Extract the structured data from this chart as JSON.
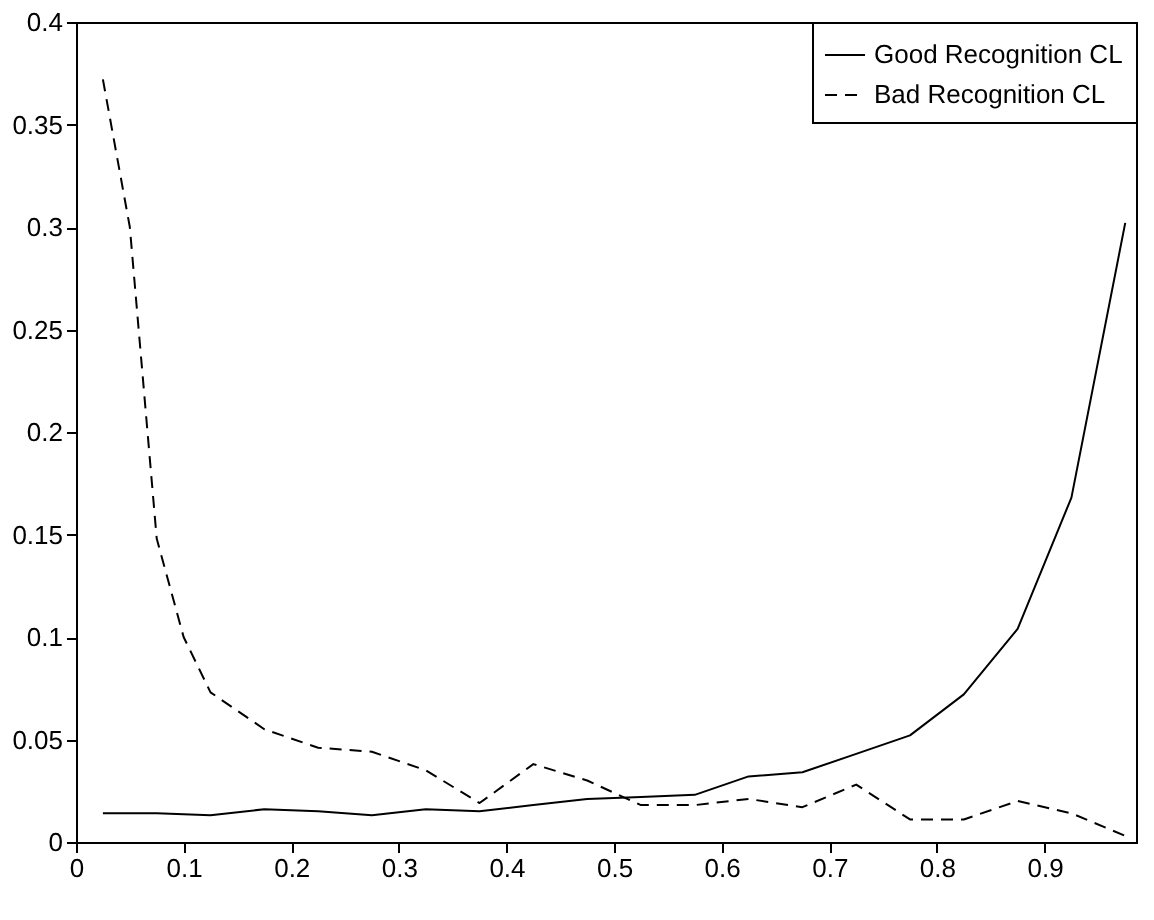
{
  "chart_data": {
    "type": "line",
    "xlim": [
      0,
      0.985
    ],
    "ylim": [
      0,
      0.4
    ],
    "xticks": [
      0,
      0.1,
      0.2,
      0.3,
      0.4,
      0.5,
      0.6,
      0.7,
      0.8,
      0.9
    ],
    "yticks": [
      0,
      0.05,
      0.1,
      0.15,
      0.2,
      0.25,
      0.3,
      0.35,
      0.4
    ],
    "grid": false,
    "legend": "top right",
    "marker": "none",
    "series": [
      {
        "name": "Good Recognition CL",
        "color": "#000000",
        "line_style": "solid",
        "x": [
          0.025,
          0.075,
          0.125,
          0.175,
          0.225,
          0.275,
          0.325,
          0.375,
          0.425,
          0.475,
          0.525,
          0.575,
          0.625,
          0.675,
          0.725,
          0.775,
          0.825,
          0.875,
          0.925,
          0.975
        ],
        "values": [
          0.014,
          0.014,
          0.013,
          0.016,
          0.015,
          0.013,
          0.016,
          0.015,
          0.018,
          0.021,
          0.022,
          0.023,
          0.032,
          0.034,
          0.043,
          0.052,
          0.072,
          0.104,
          0.168,
          0.302
        ]
      },
      {
        "name": "Bad Recognition CL",
        "color": "#000000",
        "line_style": "dashed",
        "x": [
          0.025,
          0.05,
          0.075,
          0.1,
          0.125,
          0.175,
          0.225,
          0.275,
          0.325,
          0.375,
          0.425,
          0.475,
          0.525,
          0.575,
          0.625,
          0.675,
          0.725,
          0.775,
          0.825,
          0.875,
          0.925,
          0.975
        ],
        "values": [
          0.372,
          0.3,
          0.148,
          0.1,
          0.073,
          0.055,
          0.046,
          0.044,
          0.035,
          0.019,
          0.038,
          0.03,
          0.018,
          0.018,
          0.021,
          0.017,
          0.028,
          0.011,
          0.011,
          0.02,
          0.014,
          0.003
        ]
      }
    ]
  }
}
